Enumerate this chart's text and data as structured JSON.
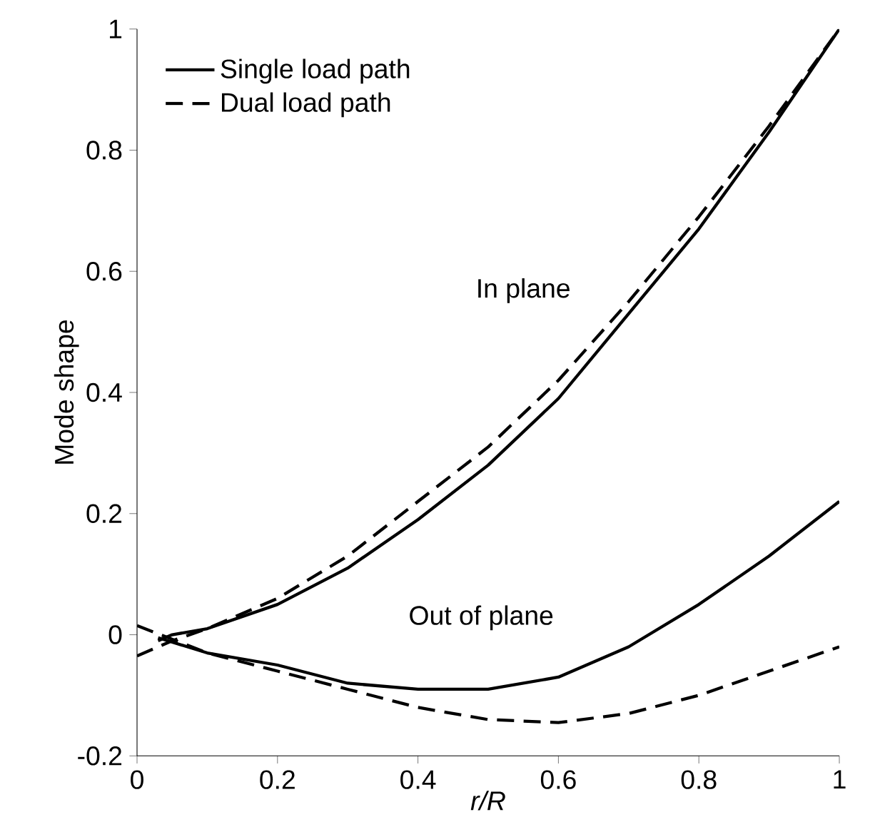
{
  "chart_data": {
    "type": "line",
    "xlabel": "r/R",
    "ylabel": "Mode shape",
    "xlim": [
      0,
      1
    ],
    "ylim": [
      -0.2,
      1
    ],
    "xticks": [
      0,
      0.2,
      0.4,
      0.6,
      0.8,
      1
    ],
    "yticks": [
      -0.2,
      0,
      0.2,
      0.4,
      0.6,
      0.8,
      1
    ],
    "grid": false,
    "legend": "top left",
    "marker": "none",
    "series": [
      {
        "name": "Single load path",
        "color": "#000000",
        "line_style": "solid",
        "x": [
          0.03,
          0.05,
          0.1,
          0.2,
          0.3,
          0.4,
          0.5,
          0.6,
          0.7,
          0.8,
          0.9,
          1
        ],
        "values": [
          -0.01,
          0,
          0.01,
          0.05,
          0.11,
          0.19,
          0.28,
          0.39,
          0.53,
          0.67,
          0.83,
          1
        ]
      },
      {
        "name": "Dual load path",
        "color": "#000000",
        "line_style": "dashed",
        "x": [
          0,
          0.05,
          0.1,
          0.2,
          0.3,
          0.4,
          0.5,
          0.6,
          0.7,
          0.8,
          0.9,
          1
        ],
        "values": [
          -0.035,
          -0.01,
          0.01,
          0.06,
          0.13,
          0.22,
          0.31,
          0.42,
          0.55,
          0.69,
          0.84,
          1
        ]
      },
      {
        "color": "#000000",
        "line_style": "solid",
        "x": [
          0.03,
          0.1,
          0.2,
          0.3,
          0.4,
          0.5,
          0.6,
          0.7,
          0.8,
          0.9,
          1
        ],
        "values": [
          -0.005,
          -0.03,
          -0.05,
          -0.08,
          -0.09,
          -0.09,
          -0.07,
          -0.02,
          0.05,
          0.13,
          0.22
        ]
      },
      {
        "color": "#000000",
        "line_style": "dashed",
        "x": [
          0,
          0.1,
          0.2,
          0.3,
          0.4,
          0.5,
          0.6,
          0.7,
          0.8,
          0.9,
          1
        ],
        "values": [
          0.015,
          -0.03,
          -0.06,
          -0.09,
          -0.12,
          -0.14,
          -0.145,
          -0.13,
          -0.1,
          -0.06,
          -0.02
        ]
      }
    ],
    "annotations": [
      "In plane",
      "Out of plane"
    ]
  }
}
